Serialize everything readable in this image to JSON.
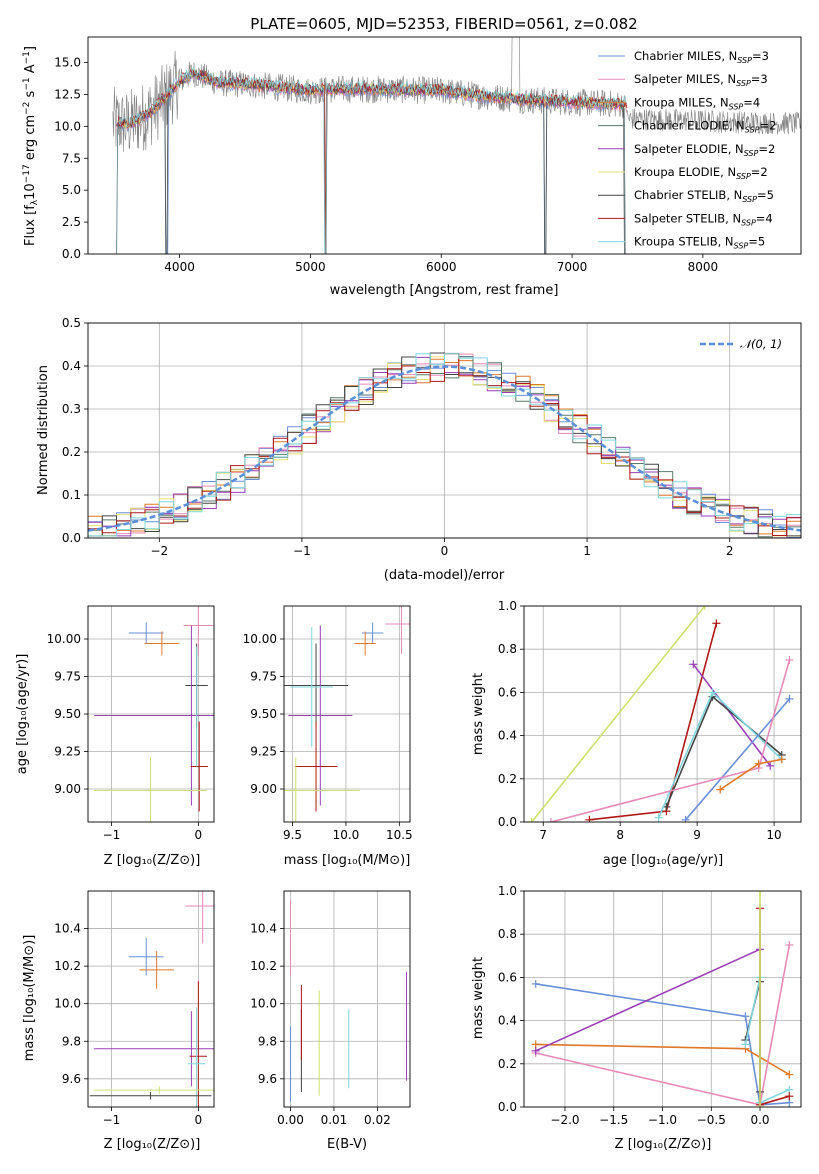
{
  "chart_data": [
    {
      "id": "spectrum",
      "type": "line",
      "title": "PLATE=0605, MJD=52353, FIBERID=0561, z=0.082",
      "xlabel": "wavelength [Angstrom, rest frame]",
      "ylabel": "Flux [fλ10⁻¹⁷ erg cm⁻² s⁻¹ A⁻¹]",
      "xlim": [
        3300,
        8750
      ],
      "ylim": [
        0,
        17
      ],
      "xticks": [
        "4000",
        "5000",
        "6000",
        "7000",
        "8000"
      ],
      "xtick_values": [
        4000,
        5000,
        6000,
        7000,
        8000
      ],
      "yticks": [
        "0.0",
        "2.5",
        "5.0",
        "7.5",
        "10.0",
        "12.5",
        "15.0"
      ],
      "ytick_values": [
        0,
        2.5,
        5,
        7.5,
        10,
        12.5,
        15
      ],
      "legend_position": "top-right",
      "series": [
        {
          "name": "Chabrier MILES, N_SSP=3",
          "color": "#6a8fd8"
        },
        {
          "name": "Salpeter MILES, N_SSP=3",
          "color": "#e68ab8"
        },
        {
          "name": "Kroupa MILES, N_SSP=4",
          "color": "#e0782a"
        },
        {
          "name": "Chabrier ELODIE, N_SSP=2",
          "color": "#5a7a6a"
        },
        {
          "name": "Salpeter ELODIE, N_SSP=2",
          "color": "#9a3fb8"
        },
        {
          "name": "Kroupa ELODIE, N_SSP=2",
          "color": "#e4e070"
        },
        {
          "name": "Chabrier STELIB, N_SSP=5",
          "color": "#444444"
        },
        {
          "name": "Salpeter STELIB, N_SSP=4",
          "color": "#b01818"
        },
        {
          "name": "Kroupa STELIB, N_SSP=5",
          "color": "#7fd6dc"
        }
      ],
      "continuum": {
        "x": [
          3500,
          3600,
          3700,
          3800,
          3900,
          4000,
          4100,
          4300,
          4500,
          4800,
          5000,
          5200,
          5500,
          6000,
          6300,
          6600,
          7000,
          7400,
          7420
        ],
        "y": [
          10.3,
          10.1,
          10.6,
          11.3,
          12.4,
          13.5,
          14.2,
          13.4,
          13.3,
          13.0,
          12.8,
          12.9,
          12.9,
          12.8,
          12.4,
          12.1,
          11.9,
          11.7,
          11.5
        ]
      },
      "data_spectrum_color": "#7f7f7f"
    },
    {
      "id": "residuals",
      "type": "line",
      "xlabel": "(data-model)/error",
      "ylabel": "Normed distribution",
      "xlim": [
        -2.5,
        2.5
      ],
      "ylim": [
        0,
        0.5
      ],
      "xticks": [
        "−2",
        "−1",
        "0",
        "1",
        "2"
      ],
      "xtick_values": [
        -2,
        -1,
        0,
        1,
        2
      ],
      "yticks": [
        "0.0",
        "0.1",
        "0.2",
        "0.3",
        "0.4",
        "0.5"
      ],
      "ytick_values": [
        0,
        0.1,
        0.2,
        0.3,
        0.4,
        0.5
      ],
      "legend_position": "top-right",
      "gaussian_label": "𝒩(0, 1)",
      "gaussian_color": "#5b8fd8",
      "histogram_bin_width": 0.1
    },
    {
      "id": "age-vs-Z",
      "type": "scatter",
      "xlabel": "Z [log₁₀(Z/Z⊙)]",
      "ylabel": "age  [log₁₀(age/yr)]",
      "xlim": [
        -1.27,
        0.18
      ],
      "ylim": [
        8.78,
        10.22
      ],
      "xticks": [
        "−1",
        "0"
      ],
      "xtick_values": [
        -1,
        0
      ],
      "yticks": [
        "9.00",
        "9.25",
        "9.50",
        "9.75",
        "10.00"
      ],
      "ytick_values": [
        9.0,
        9.25,
        9.5,
        9.75,
        10.0
      ],
      "points": [
        {
          "x": -0.6,
          "y": 10.04,
          "xerr": 0.2,
          "yerr": 0.07,
          "color": "#6a8fd8"
        },
        {
          "x": -0.42,
          "y": 9.97,
          "xerr": 0.2,
          "yerr": 0.08,
          "color": "#e0782a"
        },
        {
          "x": 0.0,
          "y": 10.09,
          "xerr": 0.17,
          "yerr": 0.2,
          "color": "#e68ab8"
        },
        {
          "x": -0.02,
          "y": 9.69,
          "xerr": 0.13,
          "yerr": 0.28,
          "color": "#444444"
        },
        {
          "x": -0.08,
          "y": 9.49,
          "xerr": 1.12,
          "yerr": 0.6,
          "color": "#9a3fb8"
        },
        {
          "x": 0.01,
          "y": 9.15,
          "xerr": 0.1,
          "yerr": 0.3,
          "color": "#b01818"
        },
        {
          "x": -0.02,
          "y": 9.55,
          "xerr": 0.0,
          "yerr": 0.4,
          "color": "#7fd6dc"
        },
        {
          "x": -0.55,
          "y": 8.99,
          "xerr": 0.65,
          "yerr": 0.22,
          "color": "#cce070"
        }
      ]
    },
    {
      "id": "age-vs-mass",
      "type": "scatter",
      "xlabel": "mass [log₁₀(M/M⊙)]",
      "ylabel": "",
      "xlim": [
        9.42,
        10.6
      ],
      "ylim": [
        8.78,
        10.22
      ],
      "xticks": [
        "9.5",
        "10.0",
        "10.5"
      ],
      "xtick_values": [
        9.5,
        10.0,
        10.5
      ],
      "yticks": [
        "9.00",
        "9.25",
        "9.50",
        "9.75",
        "10.00"
      ],
      "ytick_values": [
        9.0,
        9.25,
        9.5,
        9.75,
        10.0
      ],
      "points": [
        {
          "x": 10.25,
          "y": 10.04,
          "xerr": 0.1,
          "yerr": 0.07,
          "color": "#6a8fd8"
        },
        {
          "x": 10.18,
          "y": 9.97,
          "xerr": 0.1,
          "yerr": 0.08,
          "color": "#e0782a"
        },
        {
          "x": 10.52,
          "y": 10.1,
          "xerr": 0.15,
          "yerr": 0.2,
          "color": "#e68ab8"
        },
        {
          "x": 9.72,
          "y": 9.69,
          "xerr": 0.3,
          "yerr": 0.28,
          "color": "#444444"
        },
        {
          "x": 9.76,
          "y": 9.49,
          "xerr": 0.3,
          "yerr": 0.6,
          "color": "#9a3fb8"
        },
        {
          "x": 9.72,
          "y": 9.15,
          "xerr": 0.2,
          "yerr": 0.3,
          "color": "#b01818"
        },
        {
          "x": 9.68,
          "y": 9.68,
          "xerr": 0.2,
          "yerr": 0.4,
          "color": "#7fd6dc"
        },
        {
          "x": 9.53,
          "y": 8.99,
          "xerr": 0.6,
          "yerr": 0.22,
          "color": "#cce070"
        }
      ]
    },
    {
      "id": "weight-vs-age",
      "type": "line",
      "xlabel": "age  [log₁₀(age/yr)]",
      "ylabel": "mass weight",
      "xlim": [
        6.75,
        10.35
      ],
      "ylim": [
        0,
        1.0
      ],
      "xticks": [
        "7",
        "8",
        "9",
        "10"
      ],
      "xtick_values": [
        7,
        8,
        9,
        10
      ],
      "yticks": [
        "0.0",
        "0.2",
        "0.4",
        "0.6",
        "0.8",
        "1.0"
      ],
      "ytick_values": [
        0,
        0.2,
        0.4,
        0.6,
        0.8,
        1.0
      ],
      "series": [
        {
          "color": "#cce070",
          "x": [
            6.85,
            9.1
          ],
          "y": [
            0.0,
            1.0
          ]
        },
        {
          "color": "#b01818",
          "x": [
            7.6,
            8.6,
            9.25
          ],
          "y": [
            0.01,
            0.05,
            0.92
          ]
        },
        {
          "color": "#9a3fb8",
          "x": [
            8.95,
            9.95
          ],
          "y": [
            0.73,
            0.26
          ]
        },
        {
          "color": "#444444",
          "x": [
            8.6,
            9.2,
            10.1
          ],
          "y": [
            0.07,
            0.58,
            0.31
          ]
        },
        {
          "color": "#7fd6dc",
          "x": [
            8.5,
            9.2,
            10.1
          ],
          "y": [
            0.02,
            0.6,
            0.29
          ]
        },
        {
          "color": "#6a8fd8",
          "x": [
            8.85,
            10.2
          ],
          "y": [
            0.01,
            0.57
          ]
        },
        {
          "color": "#e68ab8",
          "x": [
            7.1,
            9.8,
            10.2
          ],
          "y": [
            0.0,
            0.25,
            0.75
          ]
        },
        {
          "color": "#e0782a",
          "x": [
            9.3,
            9.8,
            10.1
          ],
          "y": [
            0.15,
            0.27,
            0.29
          ]
        }
      ]
    },
    {
      "id": "mass-vs-Z",
      "type": "scatter",
      "xlabel": "Z [log₁₀(Z/Z⊙)]",
      "ylabel": "mass [log₁₀(M/M⊙)]",
      "xlim": [
        -1.27,
        0.18
      ],
      "ylim": [
        9.45,
        10.6
      ],
      "xticks": [
        "−1",
        "0"
      ],
      "xtick_values": [
        -1,
        0
      ],
      "yticks": [
        "9.6",
        "9.8",
        "10.0",
        "10.2",
        "10.4"
      ],
      "ytick_values": [
        9.6,
        9.8,
        10.0,
        10.2,
        10.4
      ],
      "points": [
        {
          "x": -0.6,
          "y": 10.25,
          "xerr": 0.2,
          "yerr": 0.1,
          "color": "#6a8fd8"
        },
        {
          "x": -0.48,
          "y": 10.18,
          "xerr": 0.2,
          "yerr": 0.1,
          "color": "#e0782a"
        },
        {
          "x": 0.05,
          "y": 10.52,
          "xerr": 0.2,
          "yerr": 0.2,
          "color": "#e68ab8"
        },
        {
          "x": -0.08,
          "y": 9.76,
          "xerr": 1.12,
          "yerr": 0.2,
          "color": "#9a3fb8"
        },
        {
          "x": 0.0,
          "y": 9.72,
          "xerr": 0.1,
          "yerr": 0.4,
          "color": "#b01818"
        },
        {
          "x": -0.02,
          "y": 9.68,
          "xerr": 0.1,
          "yerr": 0.3,
          "color": "#7fd6dc"
        },
        {
          "x": -0.55,
          "y": 9.51,
          "xerr": 0.7,
          "yerr": 0.02,
          "color": "#444444"
        },
        {
          "x": -0.45,
          "y": 9.54,
          "xerr": 0.75,
          "yerr": 0.02,
          "color": "#cce070"
        }
      ]
    },
    {
      "id": "mass-vs-EBV",
      "type": "scatter",
      "xlabel": "E(B-V)",
      "ylabel": "",
      "xlim": [
        -0.0015,
        0.0275
      ],
      "ylim": [
        9.45,
        10.6
      ],
      "xticks": [
        "0.00",
        "0.01",
        "0.02"
      ],
      "xtick_values": [
        0.0,
        0.01,
        0.02
      ],
      "yticks": [
        "9.6",
        "9.8",
        "10.0",
        "10.2",
        "10.4"
      ],
      "ytick_values": [
        9.6,
        9.8,
        10.0,
        10.2,
        10.4
      ],
      "points": [
        {
          "x": 0.0,
          "y": 10.25,
          "yerr": 0.1,
          "color": "#e0782a"
        },
        {
          "x": 0.0,
          "y": 10.35,
          "yerr": 0.2,
          "color": "#e68ab8"
        },
        {
          "x": 0.0,
          "y": 9.68,
          "yerr": 0.2,
          "color": "#6a8fd8"
        },
        {
          "x": 0.0025,
          "y": 9.75,
          "yerr": 0.22,
          "color": "#444444"
        },
        {
          "x": 0.0025,
          "y": 9.9,
          "yerr": 0.2,
          "color": "#b01818"
        },
        {
          "x": 0.0066,
          "y": 9.79,
          "yerr": 0.28,
          "color": "#cce070"
        },
        {
          "x": 0.0134,
          "y": 9.76,
          "yerr": 0.21,
          "color": "#7fd6dc"
        },
        {
          "x": 0.0267,
          "y": 9.88,
          "yerr": 0.29,
          "color": "#9a3fb8"
        }
      ]
    },
    {
      "id": "weight-vs-Z",
      "type": "line",
      "xlabel": "Z [log₁₀(Z/Z⊙)]",
      "ylabel": "mass weight",
      "xlim": [
        -2.42,
        0.42
      ],
      "ylim": [
        0,
        1.0
      ],
      "xticks": [
        "−2.0",
        "−1.5",
        "−1.0",
        "−0.5",
        "0.0"
      ],
      "xtick_values": [
        -2.0,
        -1.5,
        -1.0,
        -0.5,
        0.0
      ],
      "yticks": [
        "0.0",
        "0.2",
        "0.4",
        "0.6",
        "0.8",
        "1.0"
      ],
      "ytick_values": [
        0,
        0.2,
        0.4,
        0.6,
        0.8,
        1.0
      ],
      "series": [
        {
          "color": "#6a8fd8",
          "x": [
            -2.3,
            -0.15,
            0.0,
            0.3
          ],
          "y": [
            0.57,
            0.42,
            0.01,
            0.02
          ]
        },
        {
          "color": "#e0782a",
          "x": [
            -2.3,
            -0.15,
            0.3
          ],
          "y": [
            0.29,
            0.27,
            0.15
          ]
        },
        {
          "color": "#e68ab8",
          "x": [
            -2.3,
            0.0,
            0.3
          ],
          "y": [
            0.25,
            0.01,
            0.75
          ]
        },
        {
          "color": "#9a3fb8",
          "x": [
            -2.3,
            0.0
          ],
          "y": [
            0.26,
            0.73
          ]
        },
        {
          "color": "#444444",
          "x": [
            -0.15,
            0.0,
            0.0
          ],
          "y": [
            0.31,
            0.58,
            0.07
          ]
        },
        {
          "color": "#7fd6dc",
          "x": [
            -0.15,
            0.0,
            0.0,
            0.3
          ],
          "y": [
            0.29,
            0.6,
            0.02,
            0.08
          ]
        },
        {
          "color": "#b01818",
          "x": [
            0.0,
            0.0,
            0.3
          ],
          "y": [
            0.92,
            0.01,
            0.05
          ]
        },
        {
          "color": "#cce070",
          "x": [
            0.0,
            0.0
          ],
          "y": [
            0.0,
            1.0
          ]
        }
      ]
    }
  ]
}
